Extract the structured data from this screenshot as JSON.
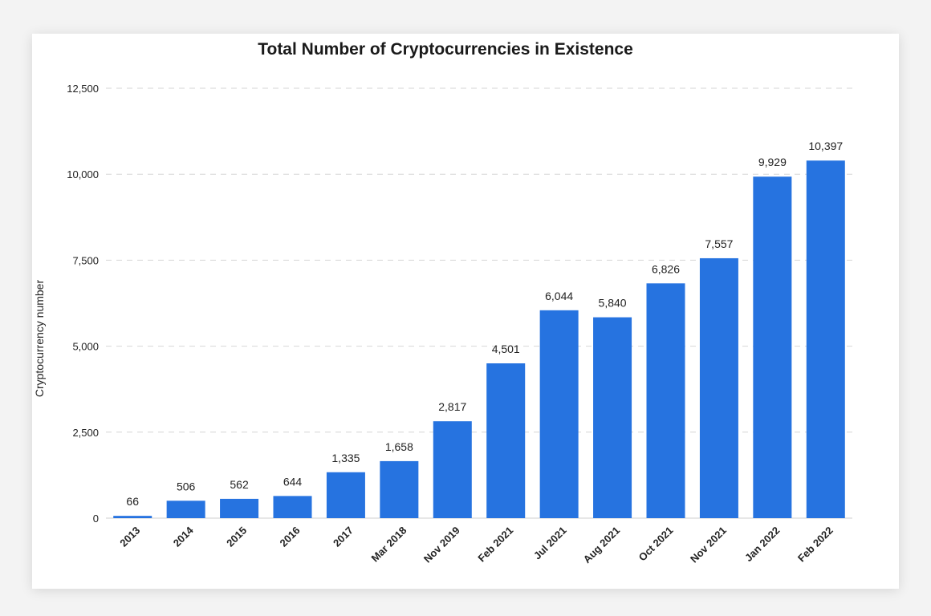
{
  "chart_data": {
    "type": "bar",
    "title": "Total Number of Cryptocurrencies in Existence",
    "xlabel": "",
    "ylabel": "Cryptocurrency number",
    "ylim": [
      0,
      12500
    ],
    "yticks": [
      0,
      2500,
      5000,
      7500,
      10000,
      12500
    ],
    "ytick_labels": [
      "0",
      "2,500",
      "5,000",
      "7,500",
      "10,000",
      "12,500"
    ],
    "grid": true,
    "bar_color": "#2673e0",
    "categories": [
      "2013",
      "2014",
      "2015",
      "2016",
      "2017",
      "Mar 2018",
      "Nov 2019",
      "Feb 2021",
      "Jul 2021",
      "Aug 2021",
      "Oct 2021",
      "Nov 2021",
      "Jan 2022",
      "Feb 2022"
    ],
    "values": [
      66,
      506,
      562,
      644,
      1335,
      1658,
      2817,
      4501,
      6044,
      5840,
      6826,
      7557,
      9929,
      10397
    ],
    "data_labels": [
      "66",
      "506",
      "562",
      "644",
      "1,335",
      "1,658",
      "2,817",
      "4,501",
      "6,044",
      "5,840",
      "6,826",
      "7,557",
      "9,929",
      "10,397"
    ]
  }
}
